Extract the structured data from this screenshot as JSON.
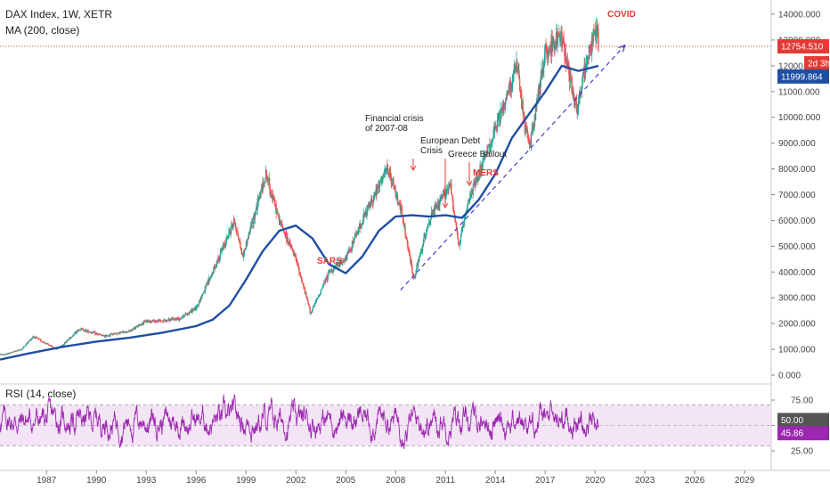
{
  "chart_data": {
    "type": "candlestick",
    "title": "DAX Index, 1W, XETR",
    "indicator_label": "MA (200, close)",
    "rsi_label": "RSI (14, close)",
    "price_axis": {
      "ticks": [
        "0.000",
        "1000.000",
        "2000.000",
        "3000.000",
        "4000.000",
        "5000.000",
        "6000.000",
        "7000.000",
        "8000.000",
        "9000.000",
        "10000.000",
        "11000.000",
        "12000.000",
        "13000.000",
        "14000.000"
      ],
      "ylim": [
        0,
        14000
      ]
    },
    "rsi_axis": {
      "ticks": [
        "25.00",
        "50.00",
        "75.00"
      ],
      "ylim": [
        0,
        100
      ],
      "band": [
        30,
        70
      ]
    },
    "time_axis": {
      "ticks": [
        "1987",
        "1990",
        "1993",
        "1996",
        "1999",
        "2002",
        "2005",
        "2008",
        "2011",
        "2014",
        "2017",
        "2020",
        "2023",
        "2026",
        "2029"
      ],
      "xlim": [
        1984.2,
        2030.6
      ]
    },
    "price_series_yearly": {
      "x": [
        1984.5,
        1985.5,
        1986.2,
        1987.6,
        1988,
        1989,
        1990.5,
        1991,
        1992,
        1993,
        1994,
        1995,
        1996,
        1997,
        1998.3,
        1998.8,
        2000.2,
        2001,
        2002,
        2002.9,
        2004,
        2005,
        2006,
        2007.5,
        2008.3,
        2009.1,
        2010,
        2011.3,
        2011.8,
        2012.5,
        2013,
        2014,
        2015.3,
        2015.8,
        2016.1,
        2017,
        2018,
        2018.9,
        2019.5,
        2020.1,
        2020.2
      ],
      "y": [
        800,
        1000,
        1500,
        1000,
        1200,
        1800,
        1500,
        1600,
        1700,
        2100,
        2100,
        2200,
        2600,
        4000,
        6000,
        4600,
        7800,
        6000,
        4500,
        2400,
        4000,
        4500,
        6000,
        8000,
        6500,
        3700,
        6000,
        7400,
        5000,
        7000,
        7800,
        9500,
        12000,
        9500,
        9000,
        12500,
        13200,
        10300,
        12200,
        13600,
        12750
      ]
    },
    "moving_average": {
      "name": "MA (200, close)",
      "x": [
        1984.2,
        1986,
        1988,
        1990,
        1992,
        1994,
        1996,
        1997,
        1998,
        1999,
        2000,
        2001,
        2002,
        2003,
        2004,
        2005,
        2006,
        2007,
        2008,
        2009,
        2010,
        2011,
        2012,
        2013,
        2014,
        2015,
        2016,
        2017,
        2018,
        2019,
        2020.2
      ],
      "y": [
        600,
        850,
        1100,
        1300,
        1450,
        1650,
        1900,
        2150,
        2700,
        3700,
        4800,
        5600,
        5800,
        5300,
        4300,
        3950,
        4600,
        5600,
        6150,
        6200,
        6150,
        6200,
        6100,
        6800,
        7800,
        9200,
        10100,
        11000,
        12000,
        11800,
        11999.864
      ]
    },
    "last_price": "12754.510",
    "countdown": "2d 3h",
    "ma_value": "11999.864",
    "rsi_last": "45.86",
    "rsi_mid": "50.00",
    "annotations": [
      {
        "text": "Financial crisis\nof 2007-08",
        "style": "dark",
        "x": 2008.0,
        "y": 8000
      },
      {
        "text": "European Debt\nCrisis",
        "style": "dark",
        "x": 2010.3,
        "y": 7300
      },
      {
        "text": "Greece Bailout",
        "style": "dark",
        "x": 2011.5,
        "y": 8200
      },
      {
        "text": "SARS",
        "style": "red",
        "x": 2002.7,
        "y": 4500
      },
      {
        "text": "MERS",
        "style": "red",
        "x": 2012.3,
        "y": 7500
      },
      {
        "text": "COVID",
        "style": "red",
        "x": 2020.1,
        "y": 14100
      }
    ],
    "trendline": {
      "x": [
        2008.3,
        2021.8
      ],
      "y": [
        3300,
        12800
      ]
    },
    "colors": {
      "up": "#26a69a",
      "down": "#ef5350",
      "ma": "#1e4fa3",
      "rsi": "#9c27b0",
      "rsi_band": "#f3e5f5",
      "last_price_line": "#e53935"
    }
  }
}
